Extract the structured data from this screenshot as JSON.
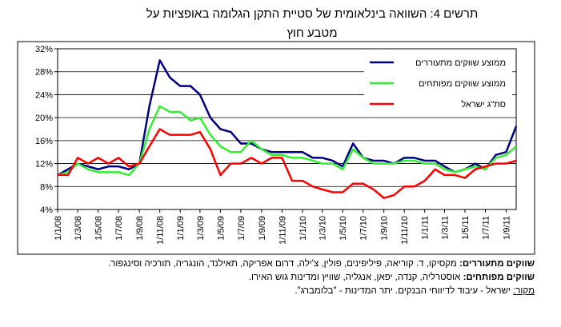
{
  "chart_data": {
    "type": "line",
    "title": [
      "תרשים 4: השוואה בינלאומית של סטיית התקן הגלומה באופציות על",
      "מטבע חוץ"
    ],
    "x": [
      "1/1/08",
      "1/2/08",
      "1/3/08",
      "1/4/08",
      "1/5/08",
      "1/6/08",
      "1/7/08",
      "1/8/08",
      "1/9/08",
      "1/10/08",
      "1/11/08",
      "1/12/08",
      "1/1/09",
      "1/2/09",
      "1/3/09",
      "1/4/09",
      "1/5/09",
      "1/6/09",
      "1/7/09",
      "1/8/09",
      "1/9/09",
      "1/10/09",
      "1/11/09",
      "1/12/09",
      "1/1/10",
      "1/2/10",
      "1/3/10",
      "1/4/10",
      "1/5/10",
      "1/6/10",
      "1/7/10",
      "1/8/10",
      "1/9/10",
      "1/10/10",
      "1/11/10",
      "1/12/10",
      "1/1/11",
      "1/2/11",
      "1/3/11",
      "1/4/11",
      "1/5/11",
      "1/6/11",
      "1/7/11",
      "1/8/11",
      "1/9/11",
      "1/10/11"
    ],
    "series": [
      {
        "name": "ממוצע שווקים מתעוררים",
        "color": "#000080",
        "values": [
          10,
          11,
          12,
          11.5,
          11,
          11.5,
          11.5,
          11,
          12,
          22,
          30,
          27,
          25.5,
          25.5,
          24,
          20,
          18,
          17.5,
          15.5,
          15.5,
          14.5,
          14,
          14,
          14,
          14,
          13,
          13,
          12.5,
          11.5,
          15.5,
          13,
          12.5,
          12.5,
          12,
          13,
          13,
          12.5,
          12.5,
          11.5,
          10.5,
          11,
          12,
          11,
          13.5,
          14,
          18.5
        ]
      },
      {
        "name": "ממוצע שווקים מפותחים",
        "color": "#33ee33",
        "values": [
          10,
          10.5,
          12,
          11,
          10.5,
          10.5,
          10.5,
          10,
          12,
          18,
          22,
          21,
          21,
          19.5,
          20,
          17,
          15,
          14,
          14,
          16,
          14.5,
          13.5,
          13.5,
          13,
          13,
          12.5,
          12,
          12,
          11,
          14.5,
          13,
          12,
          12,
          12,
          12.5,
          12.5,
          12,
          12,
          11,
          10.5,
          11,
          11.5,
          11,
          13,
          13.5,
          15
        ]
      },
      {
        "name": "סת\"ג ישראל",
        "color": "#ff0000",
        "values": [
          10,
          10,
          13,
          12,
          13,
          12,
          13,
          11.5,
          12,
          15,
          18,
          17,
          17,
          17,
          17.5,
          14.5,
          10,
          12,
          12,
          13,
          12,
          13,
          13,
          9,
          9,
          8,
          7.5,
          7,
          7,
          8.5,
          8.5,
          7.5,
          6,
          6.5,
          8,
          8,
          9,
          11,
          10,
          10,
          9.5,
          11,
          11.5,
          12,
          12,
          12.5
        ]
      }
    ],
    "xlim": [
      "1/1/08",
      "1/10/11"
    ],
    "xticks": [
      "1/1/08",
      "1/3/08",
      "1/5/08",
      "1/7/08",
      "1/9/08",
      "1/11/08",
      "1/1/09",
      "1/3/09",
      "1/5/09",
      "1/7/09",
      "1/9/09",
      "1/11/09",
      "1/1/10",
      "1/3/10",
      "1/5/10",
      "1/7/10",
      "1/9/10",
      "1/11/10",
      "1/1/11",
      "1/3/11",
      "1/5/11",
      "1/7/11",
      "1/9/11"
    ],
    "ylim": [
      4,
      32
    ],
    "yticks": [
      {
        "value": 4,
        "label": "4%"
      },
      {
        "value": 8,
        "label": "8%"
      },
      {
        "value": 12,
        "label": "12%"
      },
      {
        "value": 16,
        "label": "16%"
      },
      {
        "value": 20,
        "label": "20%"
      },
      {
        "value": 24,
        "label": "24%"
      },
      {
        "value": 28,
        "label": "28%"
      },
      {
        "value": 32,
        "label": "32%"
      }
    ],
    "grid": true,
    "legend": "top-right",
    "notes": [
      {
        "label": "שווקים מתעוררים:",
        "text": " מקסיקו, ד. קוריאה, פיליפינים, פולין, צ'ילה, דרום אפריקה, תאילנד, הונגריה, תורכיה וסינגפור."
      },
      {
        "label": "שווקים מפותחים:",
        "text": " אוסטרליה, קנדה, יפאן, אנגליה, שוויץ ומדינות גוש האירו."
      },
      {
        "label": "מקור:",
        "text": " ישראל - עיבוד לדיווחי הבנקים. יתר המדינות - \"בלומברג\"."
      }
    ]
  }
}
